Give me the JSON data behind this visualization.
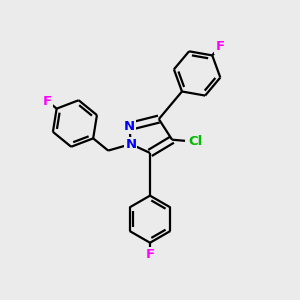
{
  "background_color": "#ebebeb",
  "bond_color": "#000000",
  "bond_width": 1.6,
  "atom_colors": {
    "N": "#0000ff",
    "F": "#ff00ff",
    "Cl": "#00bb00"
  },
  "font_size": 9.5,
  "figsize": [
    3.0,
    3.0
  ],
  "dpi": 100
}
